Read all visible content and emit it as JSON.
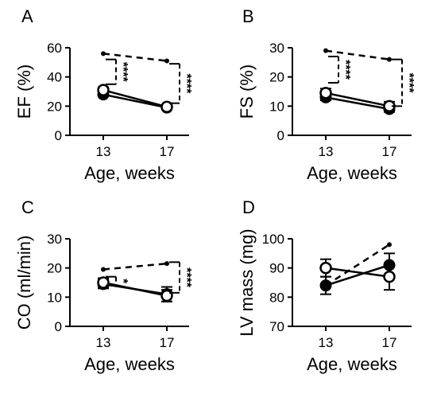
{
  "figure": {
    "panels": [
      {
        "panel_label": "A",
        "ylabel": "EF (%)",
        "xlabel": "Age, weeks",
        "x_ticks": [
          "13",
          "17"
        ],
        "y_ticks": [
          "0",
          "20",
          "40",
          "60"
        ],
        "ylim": [
          0,
          60
        ],
        "series": [
          {
            "style": "dashed-small-dot",
            "values": [
              56,
              51
            ],
            "errors": [
              0,
              0
            ]
          },
          {
            "style": "filled-circle",
            "values": [
              28,
              19
            ],
            "errors": [
              1.5,
              1
            ]
          },
          {
            "style": "open-circle",
            "values": [
              31,
              19.5
            ],
            "errors": [
              2,
              1
            ]
          }
        ],
        "significance": [
          {
            "at": "13",
            "from": 35,
            "to": 52,
            "label": "****"
          },
          {
            "at": "17",
            "from": 22,
            "to": 49,
            "label": "****"
          }
        ]
      },
      {
        "panel_label": "B",
        "ylabel": "FS (%)",
        "xlabel": "Age, weeks",
        "x_ticks": [
          "13",
          "17"
        ],
        "y_ticks": [
          "0",
          "10",
          "20",
          "30"
        ],
        "ylim": [
          0,
          30
        ],
        "series": [
          {
            "style": "dashed-small-dot",
            "values": [
              29,
              26
            ],
            "errors": [
              0,
              0
            ]
          },
          {
            "style": "filled-circle",
            "values": [
              13,
              9
            ],
            "errors": [
              1,
              1
            ]
          },
          {
            "style": "open-circle",
            "values": [
              14.5,
              10
            ],
            "errors": [
              1.5,
              1.5
            ]
          }
        ],
        "significance": [
          {
            "at": "13",
            "from": 18,
            "to": 27,
            "label": "****"
          },
          {
            "at": "17",
            "from": 10,
            "to": 26,
            "label": "****"
          }
        ]
      },
      {
        "panel_label": "C",
        "ylabel": "CO (ml/min)",
        "xlabel": "Age, weeks",
        "x_ticks": [
          "13",
          "17"
        ],
        "y_ticks": [
          "0",
          "10",
          "20",
          "30"
        ],
        "ylim": [
          0,
          30
        ],
        "series": [
          {
            "style": "dashed-small-dot",
            "values": [
              19.5,
              21.5
            ],
            "errors": [
              0,
              0
            ]
          },
          {
            "style": "filled-circle",
            "values": [
              14.5,
              11
            ],
            "errors": [
              1.5,
              2.5
            ]
          },
          {
            "style": "open-circle",
            "values": [
              15,
              10.5
            ],
            "errors": [
              1.5,
              2
            ]
          }
        ],
        "significance": [
          {
            "at": "13",
            "from": 14,
            "to": 17,
            "label": "*"
          },
          {
            "at": "17",
            "from": 11.5,
            "to": 22,
            "label": "****"
          }
        ]
      },
      {
        "panel_label": "D",
        "ylabel": "LV mass (mg)",
        "xlabel": "Age, weeks",
        "x_ticks": [
          "13",
          "17"
        ],
        "y_ticks": [
          "70",
          "80",
          "90",
          "100"
        ],
        "ylim": [
          70,
          100
        ],
        "series": [
          {
            "style": "dashed-small-dot",
            "values": [
              84,
              98
            ],
            "errors": [
              0,
              0
            ]
          },
          {
            "style": "filled-circle",
            "values": [
              84,
              91
            ],
            "errors": [
              3,
              4
            ]
          },
          {
            "style": "open-circle",
            "values": [
              90,
              87
            ],
            "errors": [
              3,
              4.5
            ]
          }
        ],
        "significance": []
      }
    ]
  },
  "chart_data": [
    {
      "type": "line",
      "panel_label": "A",
      "x": [
        "13",
        "17"
      ],
      "xlabel": "Age, weeks",
      "ylabel": "EF (%)",
      "ylim": [
        0,
        60
      ],
      "grid": false,
      "series": [
        {
          "marker": "small dot, dashed line",
          "values": [
            56,
            51
          ]
        },
        {
          "marker": "filled circle",
          "values": [
            28,
            19
          ]
        },
        {
          "marker": "open circle",
          "values": [
            31,
            19.5
          ]
        }
      ],
      "annotations": [
        "**** at 13",
        "**** at 17"
      ]
    },
    {
      "type": "line",
      "panel_label": "B",
      "x": [
        "13",
        "17"
      ],
      "xlabel": "Age, weeks",
      "ylabel": "FS (%)",
      "ylim": [
        0,
        30
      ],
      "grid": false,
      "series": [
        {
          "marker": "small dot, dashed line",
          "values": [
            29,
            26
          ]
        },
        {
          "marker": "filled circle",
          "values": [
            13,
            9
          ]
        },
        {
          "marker": "open circle",
          "values": [
            14.5,
            10
          ]
        }
      ],
      "annotations": [
        "**** at 13",
        "**** at 17"
      ]
    },
    {
      "type": "line",
      "panel_label": "C",
      "x": [
        "13",
        "17"
      ],
      "xlabel": "Age, weeks",
      "ylabel": "CO (ml/min)",
      "ylim": [
        0,
        30
      ],
      "grid": false,
      "series": [
        {
          "marker": "small dot, dashed line",
          "values": [
            19.5,
            21.5
          ]
        },
        {
          "marker": "filled circle",
          "values": [
            14.5,
            11
          ]
        },
        {
          "marker": "open circle",
          "values": [
            15,
            10.5
          ]
        }
      ],
      "annotations": [
        "* at 13",
        "**** at 17"
      ]
    },
    {
      "type": "line",
      "panel_label": "D",
      "x": [
        "13",
        "17"
      ],
      "xlabel": "Age, weeks",
      "ylabel": "LV mass (mg)",
      "ylim": [
        70,
        100
      ],
      "grid": false,
      "series": [
        {
          "marker": "small dot, dashed line",
          "values": [
            84,
            98
          ]
        },
        {
          "marker": "filled circle",
          "values": [
            84,
            91
          ]
        },
        {
          "marker": "open circle",
          "values": [
            90,
            87
          ]
        }
      ],
      "annotations": []
    }
  ]
}
